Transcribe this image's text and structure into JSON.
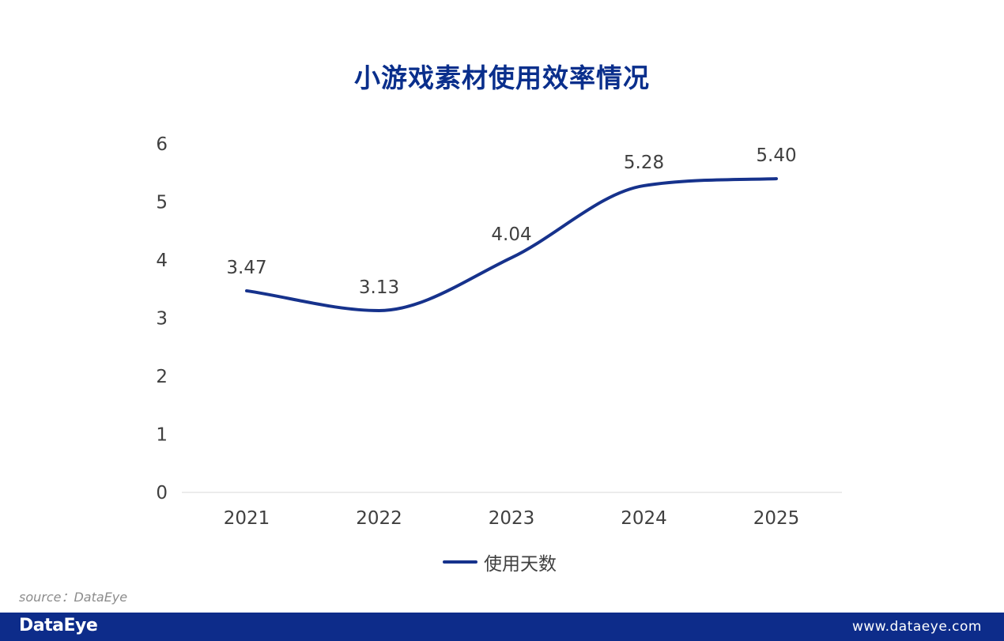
{
  "colors": {
    "line": "#16328c",
    "title": "#0a2f8c",
    "footer": "#0d2c8a",
    "axis_text": "#404040",
    "axis_line": "#d9d9d9"
  },
  "chart_data": {
    "type": "line",
    "title": "小游戏素材使用效率情况",
    "categories": [
      "2021",
      "2022",
      "2023",
      "2024",
      "2025"
    ],
    "series": [
      {
        "name": "使用天数",
        "values": [
          3.47,
          3.13,
          4.04,
          5.28,
          5.4
        ],
        "labels": [
          "3.47",
          "3.13",
          "4.04",
          "5.28",
          "5.40"
        ]
      }
    ],
    "ylim": [
      0,
      6
    ],
    "yticks": [
      "0",
      "1",
      "2",
      "3",
      "4",
      "5",
      "6"
    ],
    "xlabel": "",
    "ylabel": "",
    "grid": false,
    "smooth": true,
    "legend_position": "bottom-center"
  },
  "source": "source：DataEye",
  "footer": {
    "logo": "DataEye",
    "url": "www.dataeye.com"
  }
}
